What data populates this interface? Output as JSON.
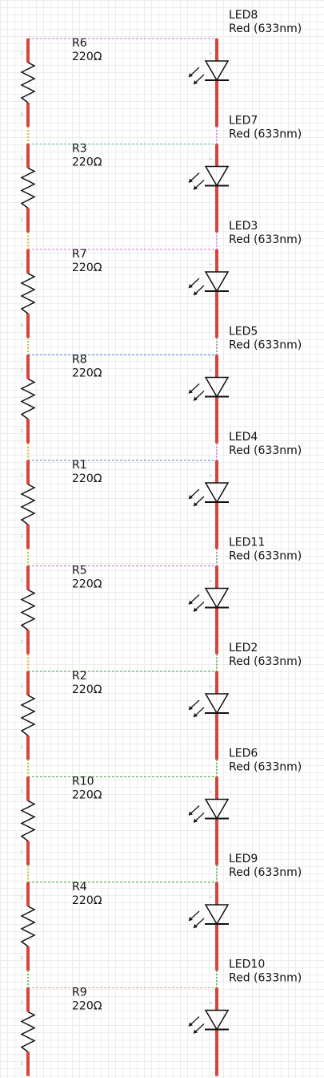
{
  "schematic": {
    "resistors": [
      {
        "ref": "R6",
        "value": "220Ω",
        "net_color": "#e070e0"
      },
      {
        "ref": "R3",
        "value": "220Ω",
        "net_color": "#60d0d8"
      },
      {
        "ref": "R7",
        "value": "220Ω",
        "net_color": "#e070e0"
      },
      {
        "ref": "R8",
        "value": "220Ω",
        "net_color": "#4f8fd0"
      },
      {
        "ref": "R1",
        "value": "220Ω",
        "net_color": "#4f8fd0"
      },
      {
        "ref": "R5",
        "value": "220Ω",
        "net_color": "#c070e0"
      },
      {
        "ref": "R2",
        "value": "220Ω",
        "net_color": "#40b040"
      },
      {
        "ref": "R10",
        "value": "220Ω",
        "net_color": "#40b040"
      },
      {
        "ref": "R4",
        "value": "220Ω",
        "net_color": "#40b040"
      },
      {
        "ref": "R9",
        "value": "220Ω",
        "net_color": "#f0a070"
      }
    ],
    "leds": [
      {
        "ref": "LED8",
        "value": "Red (633nm)"
      },
      {
        "ref": "LED7",
        "value": "Red (633nm)"
      },
      {
        "ref": "LED3",
        "value": "Red (633nm)"
      },
      {
        "ref": "LED5",
        "value": "Red (633nm)"
      },
      {
        "ref": "LED4",
        "value": "Red (633nm)"
      },
      {
        "ref": "LED11",
        "value": "Red (633nm)"
      },
      {
        "ref": "LED2",
        "value": "Red (633nm)"
      },
      {
        "ref": "LED6",
        "value": "Red (633nm)"
      },
      {
        "ref": "LED9",
        "value": "Red (633nm)"
      },
      {
        "ref": "LED10",
        "value": "Red (633nm)"
      }
    ],
    "colors": {
      "pin": "#d9443a",
      "symbol": "#111111",
      "resistor_chain": "#e0a000",
      "led_chain": [
        "#e070e0",
        "#e070e0",
        "#888888",
        "#c070e0",
        "#888888",
        "#40b040",
        "#40b040",
        "#40b040",
        "#40b040"
      ],
      "res_chain": [
        "#e0a000",
        "#e0a000",
        "#a0c000",
        "#e0a000",
        "#a0c000",
        "#e0a000",
        "#a0c000",
        "#a0c000",
        "#40b040"
      ]
    }
  }
}
